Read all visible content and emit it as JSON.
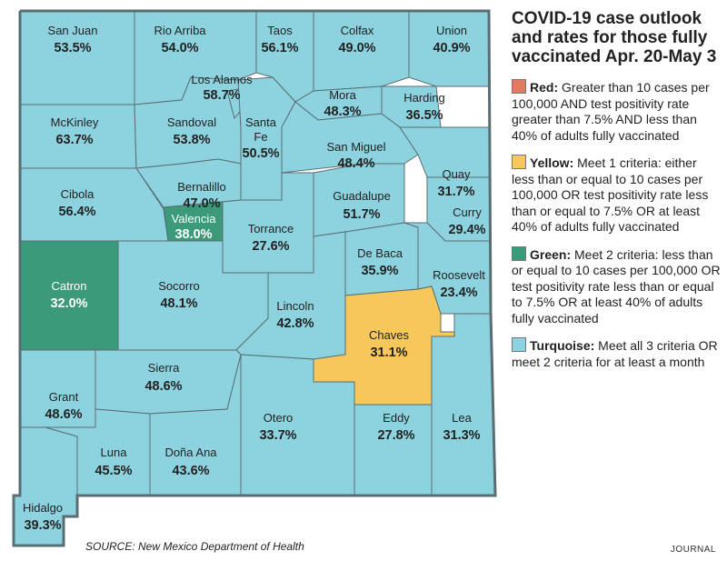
{
  "title": "COVID-19 case outlook and rates for those fully vaccinated Apr. 20-May 3",
  "colors": {
    "red": "#e07a63",
    "yellow": "#f6c75a",
    "green": "#3a9a7a",
    "turquoise": "#8dd3df"
  },
  "legend": [
    {
      "key": "Red:",
      "text": " Greater than 10 cases per 100,000 AND test positivity rate greater than 7.5% AND less than 40% of adults fully vaccinated"
    },
    {
      "key": "Yellow:",
      "text": " Meet 1 criteria: either less than or equal to 10 cases per 100,000 OR test positivity rate less than or equal to 7.5% OR at least 40% of adults fully vaccinated"
    },
    {
      "key": "Green:",
      "text": " Meet 2 criteria: less than or equal to 10 cases per 100,000 OR test positivity rate less than or equal to 7.5% OR at least 40% of adults fully vaccinated"
    },
    {
      "key": "Turquoise:",
      "text": " Meet all 3 criteria OR meet 2 criteria for at least a month"
    }
  ],
  "counties": {
    "san_juan": {
      "name": "San Juan",
      "rate": "53.5%",
      "category": "turquoise"
    },
    "rio_arriba": {
      "name": "Rio Arriba",
      "rate": "54.0%",
      "category": "turquoise"
    },
    "taos": {
      "name": "Taos",
      "rate": "56.1%",
      "category": "turquoise"
    },
    "colfax": {
      "name": "Colfax",
      "rate": "49.0%",
      "category": "turquoise"
    },
    "union": {
      "name": "Union",
      "rate": "40.9%",
      "category": "turquoise"
    },
    "los_alamos": {
      "name": "Los Alamos",
      "rate": "58.7%",
      "category": "turquoise"
    },
    "mora": {
      "name": "Mora",
      "rate": "48.3%",
      "category": "turquoise"
    },
    "harding": {
      "name": "Harding",
      "rate": "36.5%",
      "category": "turquoise"
    },
    "mckinley": {
      "name": "McKinley",
      "rate": "63.7%",
      "category": "turquoise"
    },
    "sandoval": {
      "name": "Sandoval",
      "rate": "53.8%",
      "category": "turquoise"
    },
    "santa_fe": {
      "name1": "Santa",
      "name2": "Fe",
      "rate": "50.5%",
      "category": "turquoise"
    },
    "san_miguel": {
      "name": "San Miguel",
      "rate": "48.4%",
      "category": "turquoise"
    },
    "quay": {
      "name": "Quay",
      "rate": "31.7%",
      "category": "turquoise"
    },
    "cibola": {
      "name": "Cibola",
      "rate": "56.4%",
      "category": "turquoise"
    },
    "bernalillo": {
      "name": "Bernalillo",
      "rate": "47.0%",
      "category": "turquoise"
    },
    "valencia": {
      "name": "Valencia",
      "rate": "38.0%",
      "category": "green"
    },
    "torrance": {
      "name": "Torrance",
      "rate": "27.6%",
      "category": "turquoise"
    },
    "guadalupe": {
      "name": "Guadalupe",
      "rate": "51.7%",
      "category": "turquoise"
    },
    "curry": {
      "name": "Curry",
      "rate": "29.4%",
      "category": "turquoise"
    },
    "de_baca": {
      "name": "De Baca",
      "rate": "35.9%",
      "category": "turquoise"
    },
    "roosevelt": {
      "name": "Roosevelt",
      "rate": "23.4%",
      "category": "turquoise"
    },
    "catron": {
      "name": "Catron",
      "rate": "32.0%",
      "category": "green"
    },
    "socorro": {
      "name": "Socorro",
      "rate": "48.1%",
      "category": "turquoise"
    },
    "lincoln": {
      "name": "Lincoln",
      "rate": "42.8%",
      "category": "turquoise"
    },
    "chaves": {
      "name": "Chaves",
      "rate": "31.1%",
      "category": "yellow"
    },
    "sierra": {
      "name": "Sierra",
      "rate": "48.6%",
      "category": "turquoise"
    },
    "grant": {
      "name": "Grant",
      "rate": "48.6%",
      "category": "turquoise"
    },
    "otero": {
      "name": "Otero",
      "rate": "33.7%",
      "category": "turquoise"
    },
    "eddy": {
      "name": "Eddy",
      "rate": "27.8%",
      "category": "turquoise"
    },
    "lea": {
      "name": "Lea",
      "rate": "31.3%",
      "category": "turquoise"
    },
    "luna": {
      "name": "Luna",
      "rate": "45.5%",
      "category": "turquoise"
    },
    "dona_ana": {
      "name": "Doña Ana",
      "rate": "43.6%",
      "category": "turquoise"
    },
    "hidalgo": {
      "name": "Hidalgo",
      "rate": "39.3%",
      "category": "turquoise"
    }
  },
  "source": "SOURCE: New Mexico Department of Health",
  "credit": "JOURNAL"
}
